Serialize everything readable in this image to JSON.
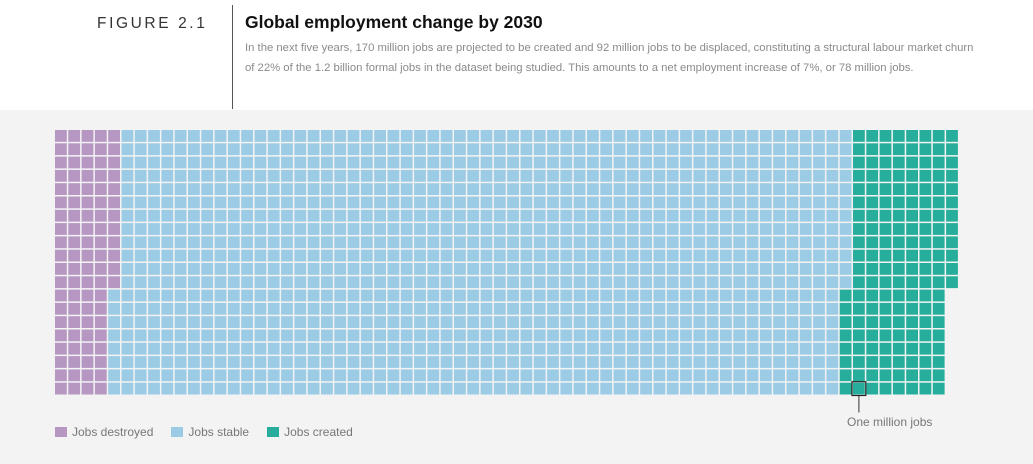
{
  "header": {
    "figure_label": "FIGURE 2.1",
    "title": "Global employment change by 2030",
    "description": "In the next five years, 170 million jobs are projected to be created and 92 million jobs to be displaced, constituting a structural labour market churn of 22% of the 1.2 billion formal jobs in the dataset being studied. This amounts to a net employment increase of 7%, or 78 million jobs."
  },
  "chart_data": {
    "type": "waffle",
    "unit": "One million jobs",
    "rows": 20,
    "columns": 68,
    "series": [
      {
        "name": "Jobs destroyed",
        "color": "#b597c2",
        "columns": 5,
        "partial_rows": 12
      },
      {
        "name": "Jobs stable",
        "color": "#9ccbe6",
        "columns": 55,
        "partial_rows": 8
      },
      {
        "name": "Jobs created",
        "color": "#27ad9b",
        "columns": 8,
        "partial_rows": 12
      }
    ]
  },
  "legend": [
    {
      "label": "Jobs destroyed",
      "color": "#b597c2"
    },
    {
      "label": "Jobs stable",
      "color": "#9ccbe6"
    },
    {
      "label": "Jobs created",
      "color": "#27ad9b"
    }
  ],
  "annotation": {
    "label": "One million jobs"
  }
}
